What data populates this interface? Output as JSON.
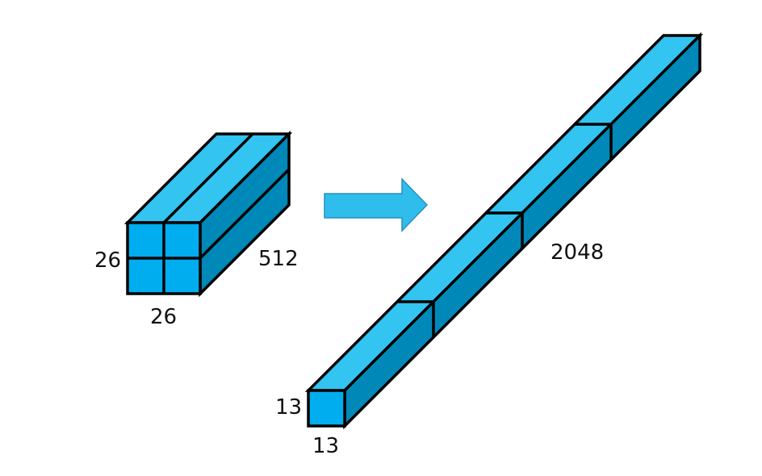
{
  "source_tensor": {
    "height_label": "26",
    "width_label": "26",
    "depth_label": "512"
  },
  "target_tensor": {
    "height_label": "13",
    "width_label": "13",
    "depth_label": "2048"
  },
  "colors": {
    "front": "#00AEEF",
    "top": "#33C4F2",
    "side": "#0088B8",
    "outline": "#000000",
    "arrow": "#2FBDEC",
    "arrow_stroke": "#2A8FBF"
  }
}
